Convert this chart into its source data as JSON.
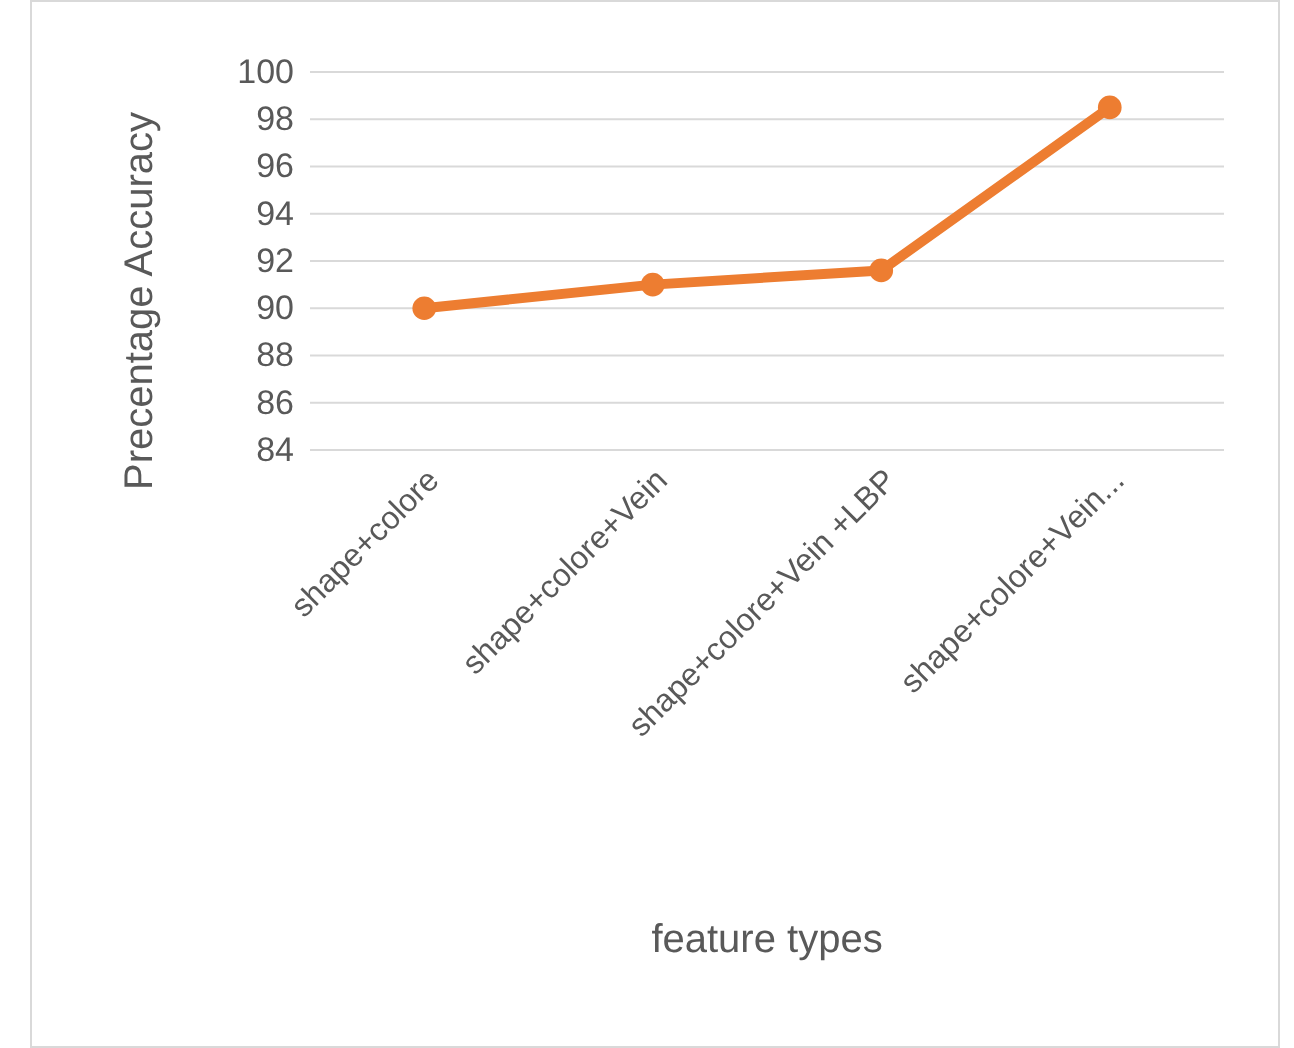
{
  "chart_data": {
    "type": "line",
    "xlabel": "feature types",
    "ylabel": "Precentage Accuracy",
    "categories": [
      "shape+colore",
      "shape+colore+Vein",
      "shape+colore+Vein +LBP",
      "shape+colore+Vein..."
    ],
    "series": [
      {
        "color": "#ed7d31",
        "values": [
          90.0,
          91.0,
          91.6,
          98.5
        ]
      }
    ],
    "ylim": [
      84,
      100
    ],
    "yticks": [
      84,
      86,
      88,
      90,
      92,
      94,
      96,
      98,
      100
    ],
    "grid": "y",
    "marker": "circle",
    "line_style": "solid"
  }
}
